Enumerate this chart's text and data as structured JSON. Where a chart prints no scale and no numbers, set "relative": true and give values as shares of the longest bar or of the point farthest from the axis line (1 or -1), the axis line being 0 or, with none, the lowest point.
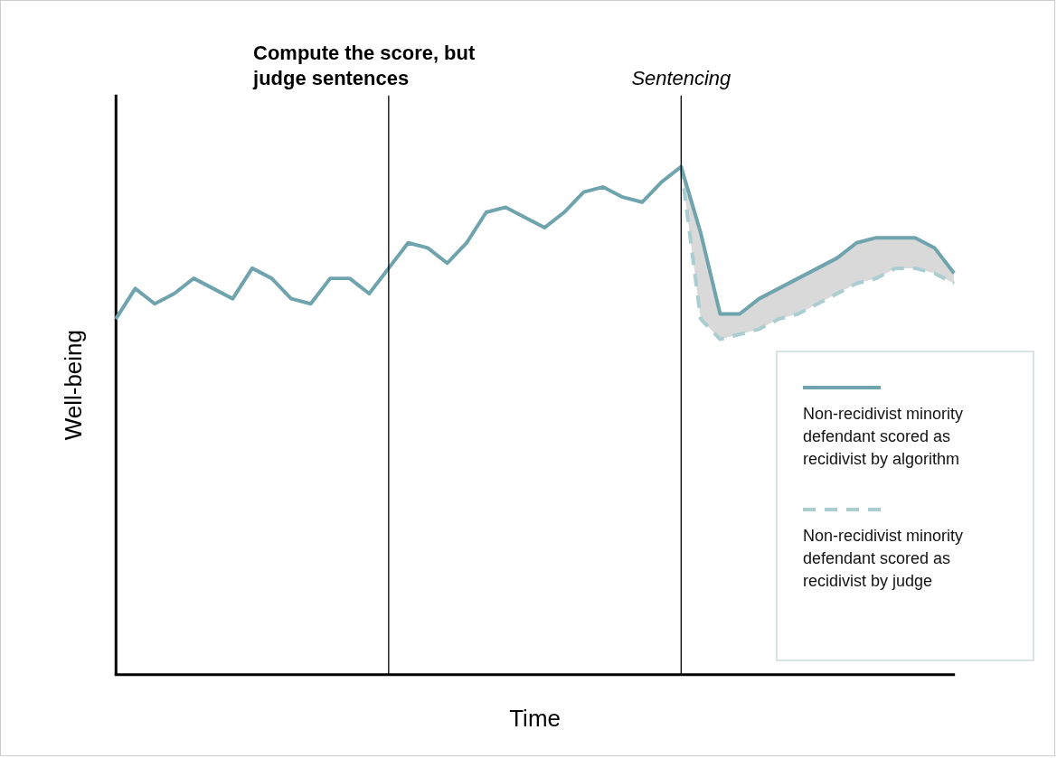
{
  "chart_data": {
    "type": "line",
    "relative": true,
    "xlabel": "Time",
    "ylabel": "Well-being",
    "legend": "bottom right",
    "marker": "none",
    "categories": [
      null,
      null,
      null,
      null,
      null,
      null,
      null,
      null,
      null,
      null,
      null,
      null,
      null,
      null,
      null,
      null,
      null,
      null,
      null,
      null,
      null,
      null,
      null,
      null,
      null,
      null,
      null,
      null,
      null,
      null,
      null,
      null,
      null,
      null,
      null,
      null,
      null,
      null,
      null,
      null,
      null,
      null,
      null,
      null
    ],
    "annotations": [
      "Compute the score, but judge sentences",
      "Sentencing"
    ],
    "series": [
      {
        "name": "Non-recidivist minority defendant scored as recidivist by algorithm",
        "color": "#6fa3ad",
        "line_style": "solid",
        "values": [
          0.7,
          0.76,
          0.73,
          0.75,
          0.78,
          0.76,
          0.74,
          0.8,
          0.78,
          0.74,
          0.73,
          0.78,
          0.78,
          0.75,
          0.8,
          0.85,
          0.84,
          0.81,
          0.85,
          0.91,
          0.92,
          0.9,
          0.88,
          0.91,
          0.95,
          0.96,
          0.94,
          0.93,
          0.97,
          1.0,
          0.87,
          0.71,
          0.71,
          0.74,
          0.76,
          0.78,
          0.8,
          0.82,
          0.85,
          0.86,
          0.86,
          0.86,
          0.84,
          0.79
        ]
      },
      {
        "name": "Non-recidivist minority defendant scored as recidivist by judge",
        "color": "#a9cdd1",
        "line_style": "dashed",
        "values": [
          null,
          null,
          null,
          null,
          null,
          null,
          null,
          null,
          null,
          null,
          null,
          null,
          null,
          null,
          null,
          null,
          null,
          null,
          null,
          null,
          null,
          null,
          null,
          null,
          null,
          null,
          null,
          null,
          null,
          1.0,
          0.7,
          0.66,
          0.67,
          0.68,
          0.7,
          0.71,
          0.73,
          0.75,
          0.77,
          0.78,
          0.8,
          0.8,
          0.79,
          0.77
        ]
      }
    ]
  }
}
